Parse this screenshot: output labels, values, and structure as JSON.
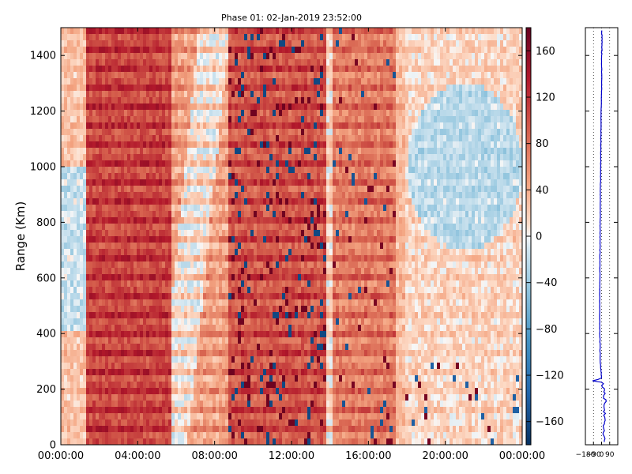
{
  "chart_data": [
    {
      "type": "heatmap",
      "title": "Phase 01: 02-Jan-2019 23:52:00",
      "xlabel": "",
      "ylabel": "Range (Km)",
      "x_ticks": [
        "00:00:00",
        "04:00:00",
        "08:00:00",
        "12:00:00",
        "16:00:00",
        "20:00:00",
        "00:00:00"
      ],
      "y_ticks": [
        0,
        200,
        400,
        600,
        800,
        1000,
        1200,
        1400
      ],
      "xlim_hours": [
        0,
        24
      ],
      "ylim": [
        0,
        1500
      ],
      "colorbar": {
        "colormap": "RdBu_r",
        "ticks": [
          160,
          120,
          80,
          40,
          0,
          -40,
          -80,
          -120,
          -160
        ],
        "range": [
          -180,
          180
        ]
      },
      "grid": false,
      "bands": [
        {
          "start_hour": 1.3,
          "end_hour": 5.8,
          "level": 105,
          "note": "strong red band"
        },
        {
          "start_hour": 8.7,
          "end_hour": 13.8,
          "level": 95,
          "note": "red band with scattered blue/dark-red pixels"
        },
        {
          "start_hour": 14.2,
          "end_hour": 17.5,
          "level": 70,
          "note": "moderate red band"
        },
        {
          "start_hour": 18.0,
          "end_hour": 24.0,
          "level": 15,
          "note": "pale band with light blue patches"
        }
      ]
    },
    {
      "type": "line",
      "title": "",
      "xlabel": "",
      "ylabel": "",
      "x_ticks": [
        "−180",
        "−90",
        "0",
        "90"
      ],
      "xlim": [
        -180,
        180
      ],
      "ylim": [
        0,
        1500
      ],
      "grid": "vertical dotted",
      "series": [
        {
          "color": "#0000cc",
          "profile": [
            {
              "range": 1490,
              "value": 5
            },
            {
              "range": 1400,
              "value": 0
            },
            {
              "range": 1300,
              "value": 2
            },
            {
              "range": 1200,
              "value": -5
            },
            {
              "range": 1100,
              "value": -8
            },
            {
              "range": 1000,
              "value": -10
            },
            {
              "range": 900,
              "value": -14
            },
            {
              "range": 800,
              "value": -16
            },
            {
              "range": 700,
              "value": -18
            },
            {
              "range": 600,
              "value": -20
            },
            {
              "range": 500,
              "value": -22
            },
            {
              "range": 400,
              "value": -20
            },
            {
              "range": 300,
              "value": -15
            },
            {
              "range": 240,
              "value": 0
            },
            {
              "range": 230,
              "value": -100
            },
            {
              "range": 225,
              "value": 10
            },
            {
              "range": 150,
              "value": 40
            },
            {
              "range": 100,
              "value": 30
            },
            {
              "range": 50,
              "value": 20
            },
            {
              "range": 10,
              "value": 30
            }
          ]
        }
      ]
    }
  ]
}
